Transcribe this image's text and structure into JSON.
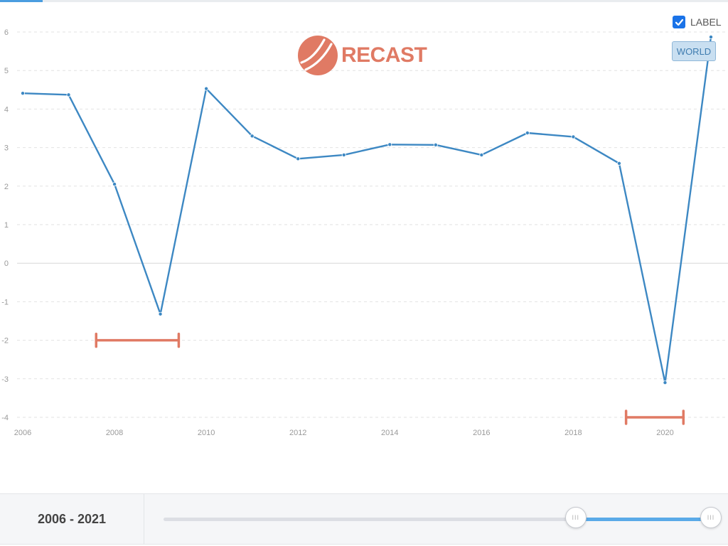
{
  "chart_data": {
    "type": "line",
    "x": [
      2006,
      2007,
      2008,
      2009,
      2010,
      2011,
      2012,
      2013,
      2014,
      2015,
      2016,
      2017,
      2018,
      2019,
      2020,
      2021
    ],
    "series": [
      {
        "values": [
          4.41,
          4.37,
          2.05,
          -1.32,
          4.53,
          3.3,
          2.71,
          2.81,
          3.08,
          3.07,
          2.81,
          3.38,
          3.28,
          2.59,
          -3.1,
          5.87
        ],
        "color": "#3d88c3"
      }
    ],
    "ylim": [
      -4,
      6
    ],
    "yticks": [
      "6",
      "5",
      "4",
      "3",
      "2",
      "1",
      "0",
      "-1",
      "-2",
      "-3",
      "-4"
    ],
    "xticks": [
      "2006",
      "2008",
      "2010",
      "2012",
      "2014",
      "2016",
      "2018",
      "2020"
    ],
    "grid": true,
    "annotations": [
      {
        "type": "recession-bar",
        "from": 2007.6,
        "to": 2009.4,
        "y": -2,
        "color": "#e07a64"
      },
      {
        "type": "recession-bar",
        "from": 2019.15,
        "to": 2020.4,
        "y": -4,
        "color": "#e07a64"
      }
    ]
  },
  "logo": {
    "text": "RECAST",
    "color": "#e07a64"
  },
  "label_toggle": {
    "text": "LABEL",
    "checked": true
  },
  "series_badge": {
    "text": "WORLD"
  },
  "range": {
    "label": "2006 - 2021",
    "start_fraction": 0.753,
    "end_fraction": 1.0,
    "handle_glyph": "III"
  }
}
